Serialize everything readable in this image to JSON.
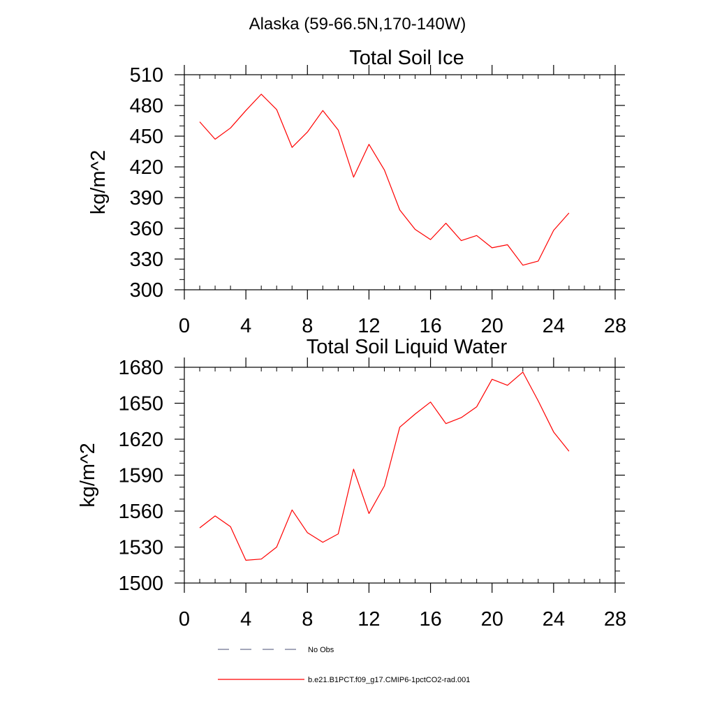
{
  "figure": {
    "title": "Alaska (59-66.5N,170-140W)"
  },
  "chart_data": [
    {
      "type": "line",
      "title": "Total Soil Ice",
      "xlabel": "",
      "ylabel": "kg/m^2",
      "xlim": [
        0,
        28
      ],
      "ylim": [
        300,
        510
      ],
      "xticks": [
        0,
        4,
        8,
        12,
        16,
        20,
        24,
        28
      ],
      "yticks": [
        300,
        330,
        360,
        390,
        420,
        450,
        480,
        510
      ],
      "x_minor_step": 1,
      "y_minor_step": 10,
      "grid": false,
      "series": [
        {
          "name": "b.e21.B1PCT.f09_g17.CMIP6-1pctCO2-rad.001",
          "color": "#ff0000",
          "x": [
            1,
            2,
            3,
            4,
            5,
            6,
            7,
            8,
            9,
            10,
            11,
            12,
            13,
            14,
            15,
            16,
            17,
            18,
            19,
            20,
            21,
            22,
            23,
            24,
            25
          ],
          "y": [
            464,
            447,
            458,
            475,
            491,
            476,
            439,
            454,
            475,
            456,
            410,
            442,
            417,
            378,
            359,
            349,
            365,
            348,
            353,
            341,
            344,
            324,
            328,
            358,
            375
          ]
        }
      ]
    },
    {
      "type": "line",
      "title": "Total Soil Liquid Water",
      "xlabel": "",
      "ylabel": "kg/m^2",
      "xlim": [
        0,
        28
      ],
      "ylim": [
        1500,
        1680
      ],
      "xticks": [
        0,
        4,
        8,
        12,
        16,
        20,
        24,
        28
      ],
      "yticks": [
        1500,
        1530,
        1560,
        1590,
        1620,
        1650,
        1680
      ],
      "x_minor_step": 1,
      "y_minor_step": 10,
      "grid": false,
      "series": [
        {
          "name": "b.e21.B1PCT.f09_g17.CMIP6-1pctCO2-rad.001",
          "color": "#ff0000",
          "x": [
            1,
            2,
            3,
            4,
            5,
            6,
            7,
            8,
            9,
            10,
            11,
            12,
            13,
            14,
            15,
            16,
            17,
            18,
            19,
            20,
            21,
            22,
            23,
            24,
            25
          ],
          "y": [
            1546,
            1556,
            1547,
            1519,
            1520,
            1530,
            1561,
            1542,
            1534,
            1541,
            1595,
            1558,
            1581,
            1630,
            1641,
            1651,
            1633,
            1638,
            1647,
            1670,
            1665,
            1676,
            1652,
            1626,
            1610
          ]
        }
      ]
    }
  ],
  "legend": {
    "placement": "bottom",
    "items": [
      {
        "label": "No Obs",
        "style": "dashed",
        "color": "#6e7290"
      },
      {
        "label": "b.e21.B1PCT.f09_g17.CMIP6-1pctCO2-rad.001",
        "style": "solid",
        "color": "#ff0000"
      }
    ]
  }
}
